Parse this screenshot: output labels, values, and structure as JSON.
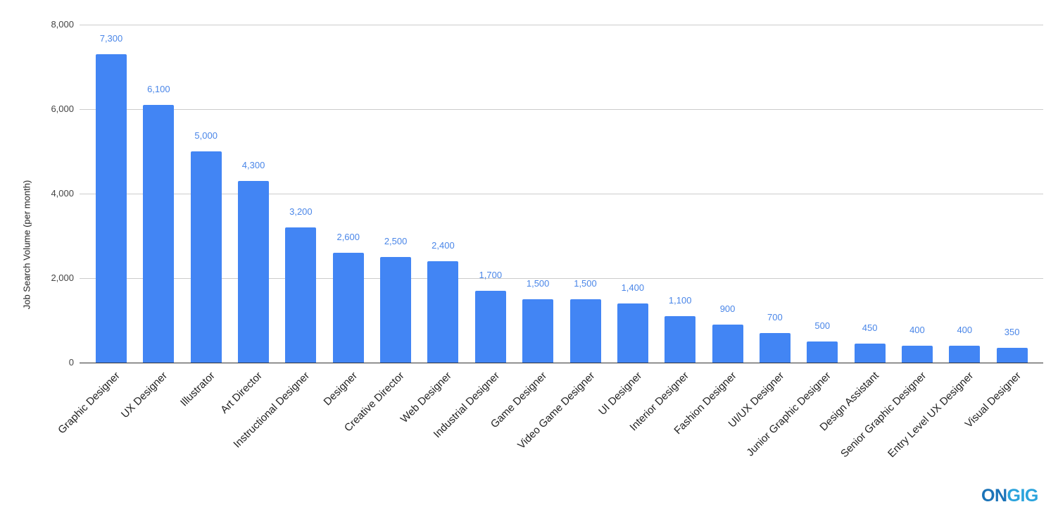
{
  "chart_data": {
    "type": "bar",
    "title": "",
    "xlabel": "",
    "ylabel": "Job Search Volume (per month)",
    "ylim": [
      0,
      8000
    ],
    "yticks": [
      0,
      2000,
      4000,
      6000,
      8000
    ],
    "ytick_labels": [
      "0",
      "2,000",
      "4,000",
      "6,000",
      "8,000"
    ],
    "grid": true,
    "legend": "none",
    "bar_color": "#4285f4",
    "label_color": "#4a86e8",
    "categories": [
      "Graphic Designer",
      "UX Designer",
      "Illustrator",
      "Art Director",
      "Instructional Designer",
      "Designer",
      "Creative Director",
      "Web Designer",
      "Industrial Designer",
      "Game Designer",
      "Video Game Designer",
      "UI Designer",
      "Interior Designer",
      "Fashion Designer",
      "UI/UX Designer",
      "Junior Graphic Designer",
      "Design Assistant",
      "Senior Graphic Designer",
      "Entry Level UX Designer",
      "Visual Designer"
    ],
    "values": [
      7300,
      6100,
      5000,
      4300,
      3200,
      2600,
      2500,
      2400,
      1700,
      1500,
      1500,
      1400,
      1100,
      900,
      700,
      500,
      450,
      400,
      400,
      350
    ],
    "value_labels": [
      "7,300",
      "6,100",
      "5,000",
      "4,300",
      "3,200",
      "2,600",
      "2,500",
      "2,400",
      "1,700",
      "1,500",
      "1,500",
      "1,400",
      "1,100",
      "900",
      "700",
      "500",
      "450",
      "400",
      "400",
      "350"
    ]
  },
  "branding": {
    "logo_part1": "ON",
    "logo_part2": "GIG"
  }
}
